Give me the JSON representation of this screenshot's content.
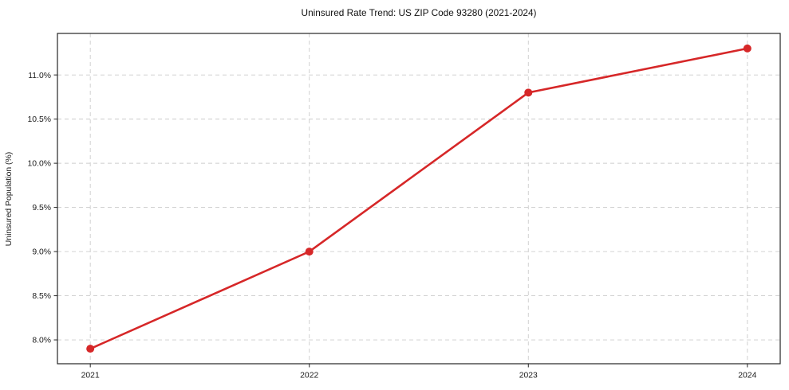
{
  "figure": {
    "background": "#ffffff"
  },
  "chart_data": {
    "type": "line",
    "title": "Uninsured Rate Trend: US ZIP Code 93280 (2021-2024)",
    "xlabel": "",
    "ylabel": "Uninsured Population (%)",
    "categories": [
      "2021",
      "2022",
      "2023",
      "2024"
    ],
    "values": [
      7.9,
      9.0,
      10.8,
      11.3
    ],
    "y_ticks": [
      {
        "value": 8.0,
        "label": "8.0%"
      },
      {
        "value": 8.5,
        "label": "8.5%"
      },
      {
        "value": 9.0,
        "label": "9.0%"
      },
      {
        "value": 9.5,
        "label": "9.5%"
      },
      {
        "value": 10.0,
        "label": "10.0%"
      },
      {
        "value": 10.5,
        "label": "10.5%"
      },
      {
        "value": 11.0,
        "label": "11.0%"
      }
    ],
    "ylim": [
      7.73,
      11.47
    ],
    "xlim": [
      -0.15,
      3.15
    ],
    "grid": "dashed",
    "legend": "none",
    "colors": {
      "line": "#d62728",
      "marker": "#d62728",
      "grid": "#cccccc",
      "spine": "#262626",
      "tick": "#262626",
      "text": "#1a1a1a"
    }
  }
}
